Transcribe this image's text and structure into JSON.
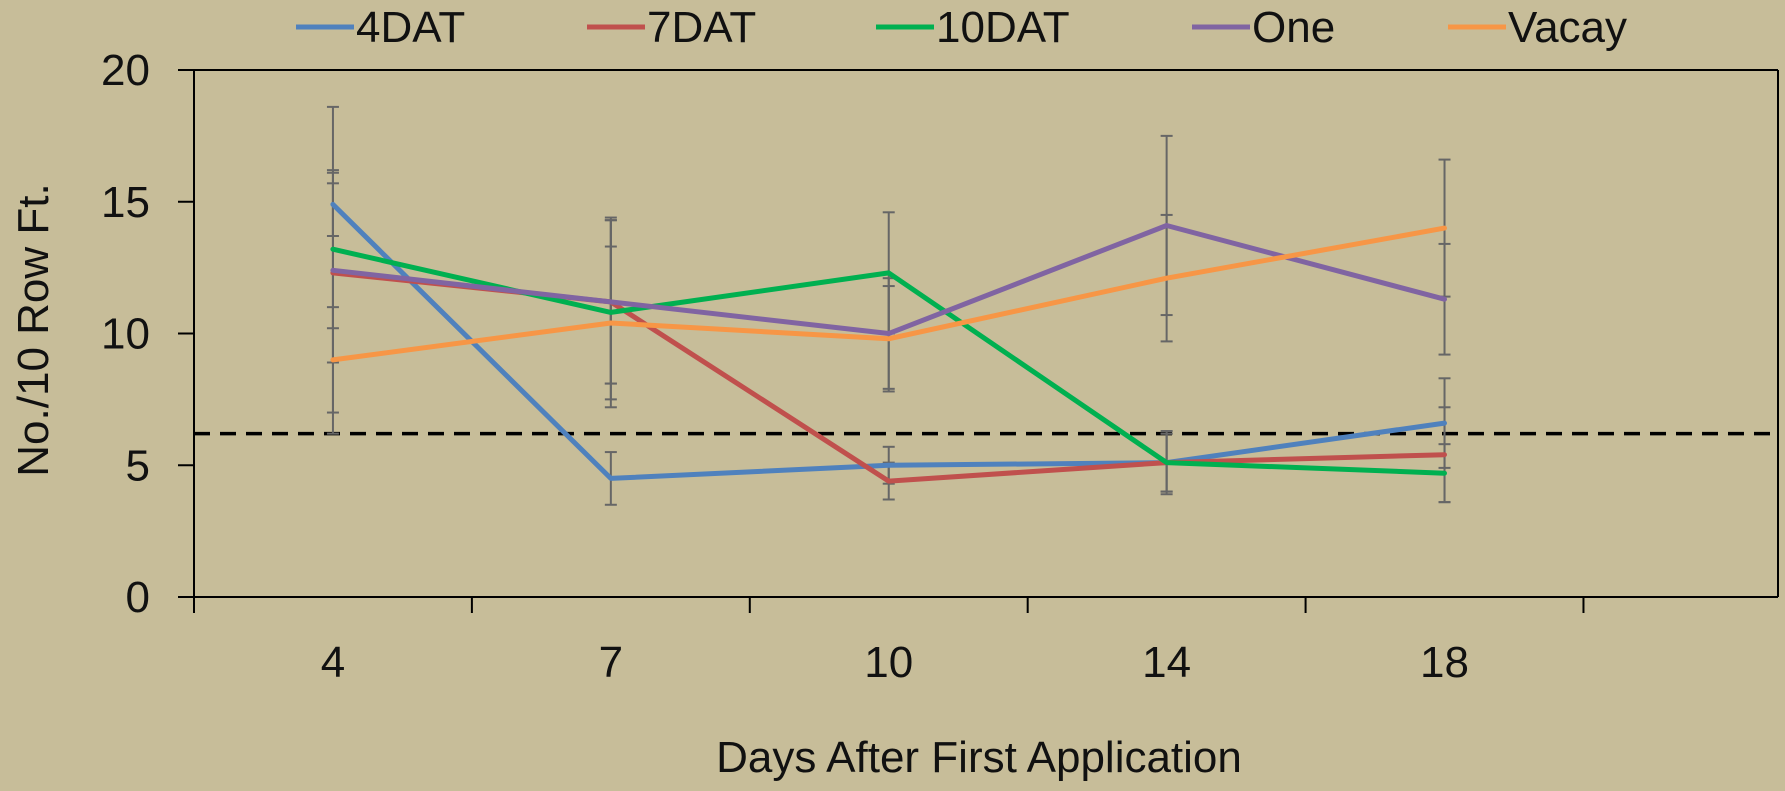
{
  "chart_data": {
    "type": "line",
    "title": "",
    "xlabel": "Days After First Application",
    "ylabel": "No./10 Row Ft.",
    "categories": [
      "4",
      "7",
      "10",
      "14",
      "18"
    ],
    "ylim": [
      0,
      20
    ],
    "yticks": [
      "0",
      "5",
      "10",
      "15",
      "20"
    ],
    "legend_position": "top",
    "grid": false,
    "threshold": {
      "value": 6.2,
      "style": "dashed",
      "color": "#000000"
    },
    "errorbar_color": "#666666",
    "series": [
      {
        "name": "4DAT",
        "color": "#4f81bd",
        "values": [
          14.9,
          4.5,
          5.0,
          5.1,
          6.6
        ],
        "errors": [
          1.2,
          1.0,
          0.7,
          1.2,
          1.7
        ]
      },
      {
        "name": "7DAT",
        "color": "#c0504d",
        "values": [
          12.3,
          11.2,
          4.4,
          5.1,
          5.4
        ],
        "errors": [
          3.4,
          3.1,
          0.7,
          1.1,
          1.8
        ]
      },
      {
        "name": "10DAT",
        "color": "#00b050",
        "values": [
          13.2,
          10.8,
          12.3,
          5.1,
          4.7
        ],
        "errors": [
          3.0,
          3.6,
          2.3,
          1.1,
          1.1
        ]
      },
      {
        "name": "One",
        "color": "#8064a2",
        "values": [
          12.4,
          11.2,
          10.0,
          14.1,
          11.3
        ],
        "errors": [
          6.2,
          3.1,
          2.1,
          3.4,
          2.1
        ]
      },
      {
        "name": "Vacay",
        "color": "#f79646",
        "values": [
          9.0,
          10.4,
          9.8,
          12.1,
          14.0
        ],
        "errors": [
          2.0,
          2.9,
          2.0,
          2.4,
          2.6
        ]
      }
    ]
  }
}
